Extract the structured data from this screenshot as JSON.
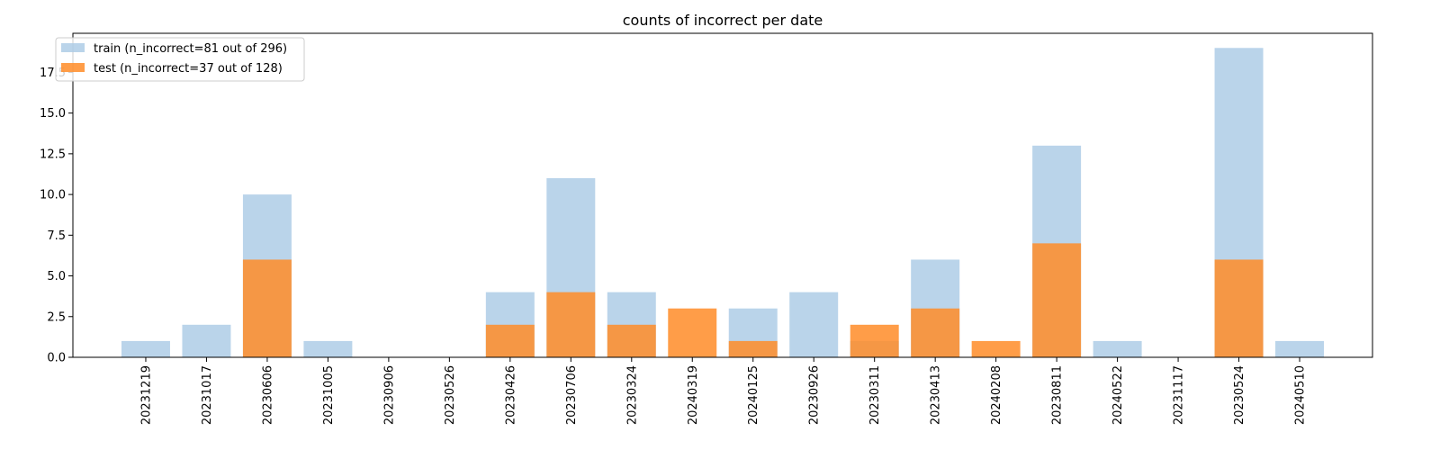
{
  "chart_data": {
    "type": "bar",
    "title": "counts of incorrect per date",
    "xlabel": "",
    "ylabel": "",
    "categories": [
      "20231219",
      "20231017",
      "20230606",
      "20231005",
      "20230906",
      "20230526",
      "20230426",
      "20230706",
      "20230324",
      "20240319",
      "20240125",
      "20230926",
      "20230311",
      "20230413",
      "20240208",
      "20230811",
      "20240522",
      "20231117",
      "20230524",
      "20240510"
    ],
    "series": [
      {
        "name": "train (n_incorrect=81 out of 296)",
        "color": "#aecde6",
        "values": [
          1,
          2,
          10,
          1,
          0,
          0,
          4,
          11,
          4,
          0,
          3,
          4,
          1,
          6,
          0,
          13,
          1,
          0,
          19,
          1
        ]
      },
      {
        "name": "test (n_incorrect=37 out of 128)",
        "color": "#ff8c28",
        "values": [
          0,
          0,
          6,
          0,
          0,
          0,
          2,
          4,
          2,
          3,
          1,
          0,
          2,
          3,
          1,
          7,
          0,
          0,
          6,
          0
        ]
      }
    ],
    "ylim": [
      0,
      19.9
    ],
    "yticks": [
      0.0,
      2.5,
      5.0,
      7.5,
      10.0,
      12.5,
      15.0,
      17.5
    ],
    "ytick_labels": [
      "0.0",
      "2.5",
      "5.0",
      "7.5",
      "10.0",
      "12.5",
      "15.0",
      "17.5"
    ],
    "grid": false,
    "legend_position": "top-left"
  }
}
